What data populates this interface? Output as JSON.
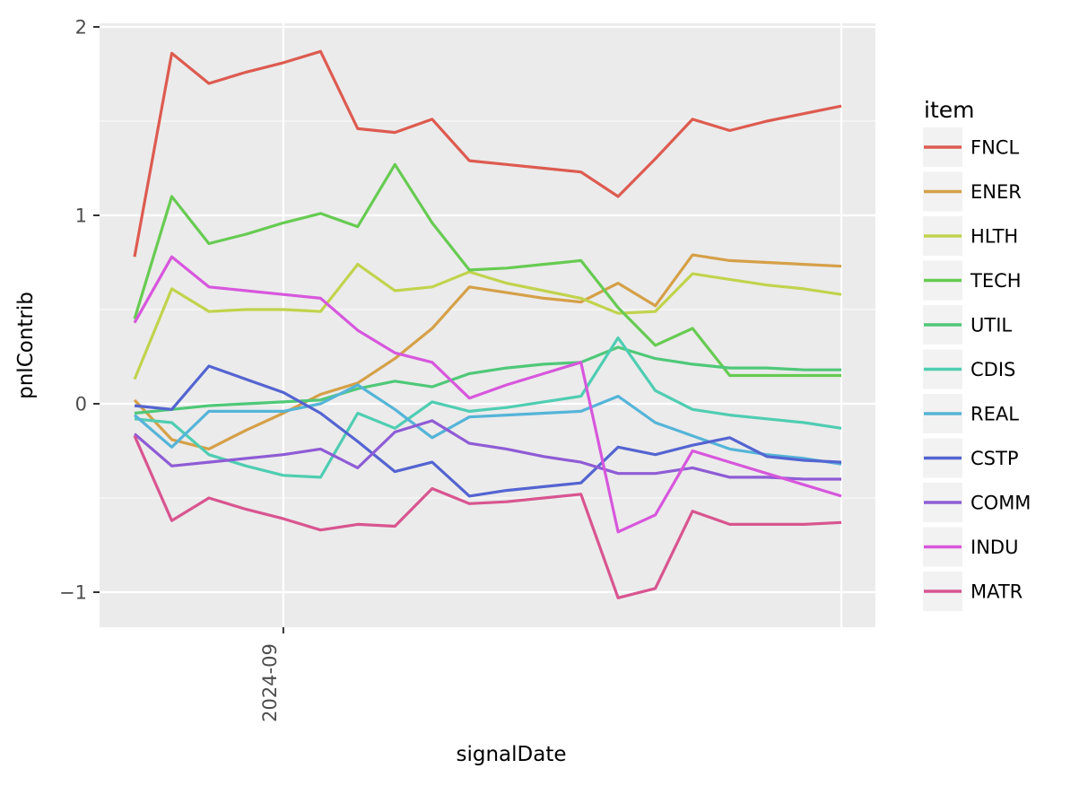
{
  "chart": {
    "y_tick_labels": [
      "2",
      "1",
      "0",
      "−1"
    ],
    "x_tick_labels": [
      "2024-09"
    ],
    "panel_background_color": "#ebebeb",
    "gridline_color": "#ffffff",
    "tick_mark_color": "#333333",
    "legend_key_background_color": "#f2f2f2"
  },
  "chart_data": {
    "type": "line",
    "title": "",
    "xlabel": "signalDate",
    "ylabel": "pnlContrib",
    "legend_title": "item",
    "legend_position": "right",
    "grid": true,
    "ylim": [
      -1.19,
      2.02
    ],
    "y_major_ticks": [
      2,
      1,
      0,
      -1
    ],
    "y_minor_gridlines": [
      1.5,
      0.5,
      -0.5
    ],
    "n_points": 20,
    "x_tick": {
      "label": "2024-09",
      "index": 4
    },
    "x_gridline_indices": [
      4,
      19
    ],
    "x_tick_has_visible_label": [
      true,
      false
    ],
    "series": [
      {
        "name": "FNCL",
        "color": "#dd5b50",
        "values": [
          0.78,
          1.86,
          1.7,
          1.76,
          1.81,
          1.87,
          1.46,
          1.44,
          1.51,
          1.29,
          1.27,
          1.25,
          1.23,
          1.1,
          1.3,
          1.51,
          1.45,
          1.5,
          1.54,
          1.58
        ]
      },
      {
        "name": "ENER",
        "color": "#d5a048",
        "values": [
          0.02,
          -0.19,
          -0.24,
          -0.14,
          -0.05,
          0.05,
          0.11,
          0.24,
          0.4,
          0.62,
          0.59,
          0.56,
          0.54,
          0.64,
          0.52,
          0.79,
          0.76,
          0.75,
          0.74,
          0.73
        ]
      },
      {
        "name": "HLTH",
        "color": "#c1d34d",
        "values": [
          0.13,
          0.61,
          0.49,
          0.5,
          0.5,
          0.49,
          0.74,
          0.6,
          0.62,
          0.7,
          0.64,
          0.6,
          0.56,
          0.48,
          0.49,
          0.69,
          0.66,
          0.63,
          0.61,
          0.58
        ]
      },
      {
        "name": "TECH",
        "color": "#67cb52",
        "values": [
          0.45,
          1.1,
          0.85,
          0.9,
          0.96,
          1.01,
          0.94,
          1.27,
          0.96,
          0.71,
          0.72,
          0.74,
          0.76,
          0.51,
          0.31,
          0.4,
          0.15,
          0.15,
          0.15,
          0.15
        ]
      },
      {
        "name": "UTIL",
        "color": "#4fc878",
        "values": [
          -0.05,
          -0.03,
          -0.01,
          0.0,
          0.01,
          0.02,
          0.08,
          0.12,
          0.09,
          0.16,
          0.19,
          0.21,
          0.22,
          0.3,
          0.24,
          0.21,
          0.19,
          0.19,
          0.18,
          0.18
        ]
      },
      {
        "name": "CDIS",
        "color": "#4fcdb2",
        "values": [
          -0.08,
          -0.1,
          -0.27,
          -0.33,
          -0.38,
          -0.39,
          -0.05,
          -0.13,
          0.01,
          -0.04,
          -0.02,
          0.01,
          0.04,
          0.35,
          0.07,
          -0.03,
          -0.06,
          -0.08,
          -0.1,
          -0.13
        ]
      },
      {
        "name": "REAL",
        "color": "#55b4d8",
        "values": [
          -0.06,
          -0.23,
          -0.04,
          -0.04,
          -0.04,
          0.0,
          0.1,
          -0.03,
          -0.18,
          -0.07,
          -0.06,
          -0.05,
          -0.04,
          0.04,
          -0.1,
          -0.17,
          -0.24,
          -0.27,
          -0.29,
          -0.32
        ]
      },
      {
        "name": "CSTP",
        "color": "#5464d1",
        "values": [
          -0.01,
          -0.03,
          0.2,
          0.13,
          0.06,
          -0.05,
          -0.2,
          -0.36,
          -0.31,
          -0.49,
          -0.46,
          -0.44,
          -0.42,
          -0.23,
          -0.27,
          -0.22,
          -0.18,
          -0.28,
          -0.3,
          -0.31
        ]
      },
      {
        "name": "COMM",
        "color": "#8e5cd5",
        "values": [
          -0.16,
          -0.33,
          -0.31,
          -0.29,
          -0.27,
          -0.24,
          -0.34,
          -0.15,
          -0.09,
          -0.21,
          -0.24,
          -0.28,
          -0.31,
          -0.37,
          -0.37,
          -0.34,
          -0.39,
          -0.39,
          -0.4,
          -0.4
        ]
      },
      {
        "name": "INDU",
        "color": "#d757dc",
        "values": [
          0.43,
          0.78,
          0.62,
          0.6,
          0.58,
          0.56,
          0.39,
          0.27,
          0.22,
          0.03,
          0.1,
          0.16,
          0.22,
          -0.68,
          -0.59,
          -0.25,
          -0.31,
          -0.37,
          -0.43,
          -0.49
        ]
      },
      {
        "name": "MATR",
        "color": "#d85590",
        "values": [
          -0.17,
          -0.62,
          -0.5,
          -0.56,
          -0.61,
          -0.67,
          -0.64,
          -0.65,
          -0.45,
          -0.53,
          -0.52,
          -0.5,
          -0.48,
          -1.03,
          -0.98,
          -0.57,
          -0.64,
          -0.64,
          -0.64,
          -0.63
        ]
      }
    ]
  }
}
